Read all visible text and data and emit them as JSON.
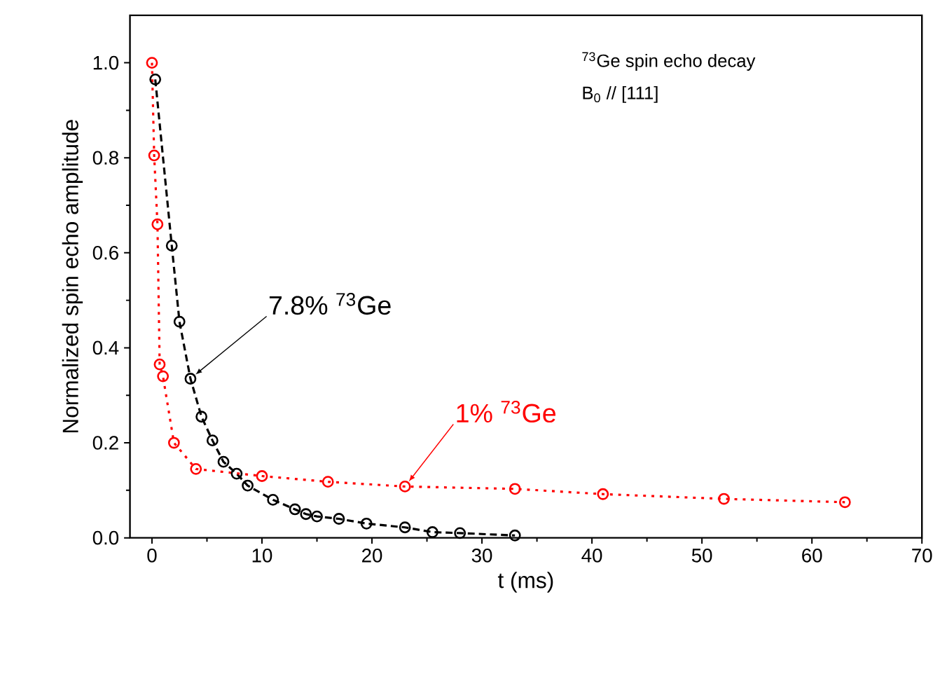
{
  "chart_data": {
    "type": "line",
    "xlabel": "t (ms)",
    "ylabel": "Normalized spin echo amplitude",
    "xlim": [
      -2,
      70
    ],
    "ylim": [
      0,
      1.1
    ],
    "xticks": [
      0,
      10,
      20,
      30,
      40,
      50,
      60,
      70
    ],
    "yticks": [
      {
        "value": 0,
        "label": "0.0"
      },
      {
        "value": 0.2,
        "label": "0.2"
      },
      {
        "value": 0.4,
        "label": "0.4"
      },
      {
        "value": 0.6,
        "label": "0.6"
      },
      {
        "value": 0.8,
        "label": "0.8"
      },
      {
        "value": 1.0,
        "label": "1.0"
      }
    ],
    "marker": "circle",
    "grid": false,
    "series": [
      {
        "color": "#000000",
        "line_style": "dashed",
        "x": [
          0.3,
          1.8,
          2.5,
          3.5,
          4.5,
          5.5,
          6.5,
          7.7,
          8.7,
          11,
          13,
          14,
          15,
          17,
          19.5,
          23,
          25.5,
          28,
          33
        ],
        "values": [
          0.965,
          0.615,
          0.455,
          0.335,
          0.255,
          0.205,
          0.16,
          0.135,
          0.11,
          0.08,
          0.06,
          0.05,
          0.045,
          0.04,
          0.03,
          0.022,
          0.012,
          0.01,
          0.005
        ]
      },
      {
        "color": "#ff0000",
        "line_style": "dotted",
        "x": [
          0,
          0.2,
          0.5,
          0.7,
          1,
          2,
          4,
          10,
          16,
          23,
          33,
          41,
          52,
          63
        ],
        "values": [
          1.0,
          0.805,
          0.66,
          0.365,
          0.34,
          0.2,
          0.145,
          0.13,
          0.118,
          0.108,
          0.103,
          0.092,
          0.082,
          0.075
        ]
      }
    ],
    "annotations": [
      "$^{73}$Ge spin echo decay",
      "B$_{0}$ // [111]",
      {
        "text": "7.8% $^{73}$Ge",
        "x": 3.5,
        "y": 0.335
      },
      {
        "text": "1% $^{73}$Ge",
        "x": 23,
        "y": 0.108
      }
    ]
  }
}
